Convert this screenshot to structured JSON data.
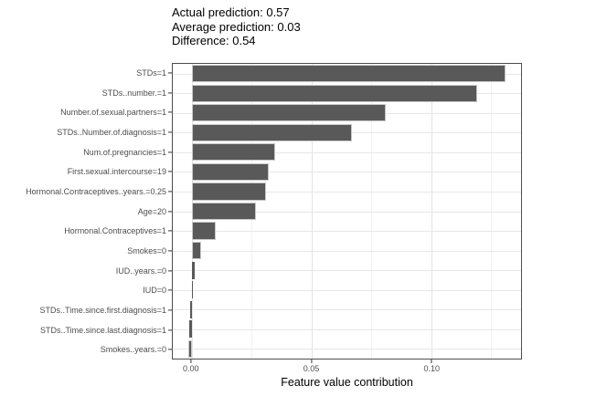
{
  "header": {
    "actual": "Actual prediction: 0.57",
    "average": "Average prediction: 0.03",
    "difference": "Difference: 0.54"
  },
  "chart_data": {
    "type": "bar",
    "orientation": "horizontal",
    "title": "Actual prediction: 0.57 / Average prediction: 0.03 / Difference: 0.54",
    "categories": [
      "STDs=1",
      "STDs..number.=1",
      "Number.of.sexual.partners=1",
      "STDs..Number.of.diagnosis=1",
      "Num.of.pregnancies=1",
      "First.sexual.intercourse=19",
      "Hormonal.Contraceptives..years.=0.25",
      "Age=20",
      "Hormonal.Contraceptives=1",
      "Smokes=0",
      "IUD..years.=0",
      "IUD=0",
      "STDs..Time.since.first.diagnosis=1",
      "STDs..Time.since.last.diagnosis=1",
      "Smokes..years.=0"
    ],
    "values": [
      0.131,
      0.119,
      0.081,
      0.067,
      0.035,
      0.032,
      0.031,
      0.027,
      0.01,
      0.004,
      0.0013,
      0.0004,
      -0.0005,
      -0.0009,
      -0.0016
    ],
    "xlabel": "Feature value contribution",
    "ylabel": "",
    "x_ticks": [
      0,
      0.05,
      0.1
    ],
    "x_tick_labels": [
      "0.00",
      "0.05",
      "0.10"
    ],
    "x_minor_ticks": [
      0.025,
      0.075,
      0.125
    ],
    "xlim": [
      -0.0079,
      0.1375
    ],
    "grid": true,
    "legend_position": "none",
    "colors": {
      "bar_fill": "#595959",
      "bar_border": "#c9c9c9",
      "grid_major": "#e4e4e4",
      "grid_minor": "#f1f1f1",
      "panel_border": "#4d4d4d",
      "axis_text": "#4d4d4d",
      "tick_mark": "#333333",
      "title_text": "#000000"
    }
  }
}
